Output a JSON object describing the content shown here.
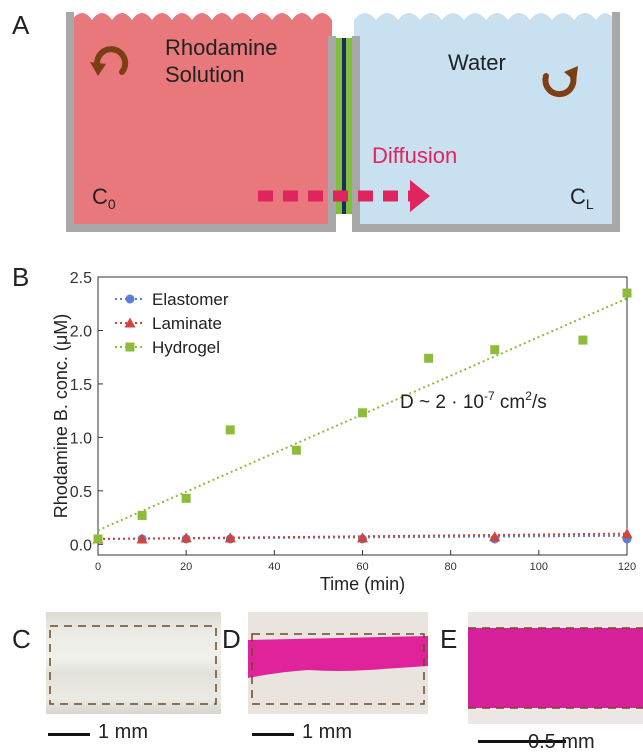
{
  "panels": {
    "a": {
      "letter": "A",
      "left_label_line1": "Rhodamine",
      "left_label_line2": "Solution",
      "right_label": "Water",
      "arrow_label": "Diffusion",
      "c0_main": "C",
      "c0_sub": "0",
      "cl_main": "C",
      "cl_sub": "L",
      "colors": {
        "solution": "#e8787b",
        "water": "#c8e0f0",
        "wall": "#a8a8a8",
        "membrane": "#7fbf3a",
        "arrow": "#e0245e",
        "stir": "#7a3f12"
      },
      "icons": [
        "stir-arrow-icon",
        "diffusion-arrow-icon"
      ]
    },
    "b": {
      "letter": "B",
      "annotation_prefix": "D ~ 2 · 10",
      "annotation_exp": "-7",
      "annotation_unit": " cm",
      "annotation_unit_exp": "2",
      "annotation_suffix": "/s"
    },
    "c": {
      "letter": "C",
      "scale_label": "1 mm",
      "color": "#e6e6df"
    },
    "d": {
      "letter": "D",
      "scale_label": "1 mm",
      "color": "#e0239a"
    },
    "e": {
      "letter": "E",
      "scale_label": "0.5 mm",
      "color": "#d6219a"
    }
  },
  "chart_data": {
    "type": "scatter",
    "xlabel": "Time (min)",
    "ylabel": "Rhodamine B. conc. (μM)",
    "xlim": [
      0,
      120
    ],
    "ylim": [
      -0.1,
      2.5
    ],
    "xticks": [
      "0",
      "20",
      "40",
      "60",
      "80",
      "100",
      "120"
    ],
    "yticks": [
      "0.0",
      "0.5",
      "1.0",
      "1.5",
      "2.0",
      "2.5"
    ],
    "legend_position": "top-left",
    "grid": false,
    "series": [
      {
        "name": "Elastomer",
        "marker": "circle",
        "color": "#5b7fd1",
        "points": [
          [
            0,
            0.05
          ],
          [
            10,
            0.05
          ],
          [
            20,
            0.05
          ],
          [
            30,
            0.05
          ],
          [
            60,
            0.05
          ],
          [
            90,
            0.05
          ],
          [
            120,
            0.05
          ]
        ],
        "fit": [
          [
            0,
            0.05
          ],
          [
            120,
            0.08
          ]
        ]
      },
      {
        "name": "Laminate",
        "marker": "triangle",
        "color": "#d2433a",
        "points": [
          [
            0,
            0.05
          ],
          [
            10,
            0.05
          ],
          [
            20,
            0.06
          ],
          [
            30,
            0.06
          ],
          [
            60,
            0.06
          ],
          [
            90,
            0.07
          ],
          [
            120,
            0.1
          ]
        ],
        "fit": [
          [
            0,
            0.05
          ],
          [
            120,
            0.1
          ]
        ]
      },
      {
        "name": "Hydrogel",
        "marker": "square",
        "color": "#8dbb3c",
        "points": [
          [
            0,
            0.05
          ],
          [
            10,
            0.27
          ],
          [
            20,
            0.43
          ],
          [
            30,
            1.07
          ],
          [
            45,
            0.88
          ],
          [
            60,
            1.23
          ],
          [
            75,
            1.74
          ],
          [
            90,
            1.82
          ],
          [
            110,
            1.91
          ],
          [
            120,
            2.35
          ]
        ],
        "fit": [
          [
            0,
            0.13
          ],
          [
            120,
            2.3
          ]
        ]
      }
    ]
  }
}
